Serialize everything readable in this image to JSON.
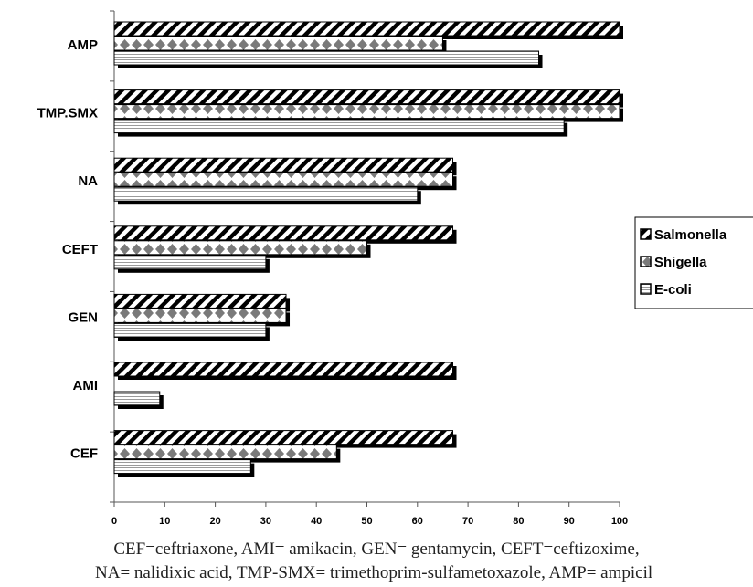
{
  "chart_data": {
    "type": "bar",
    "orientation": "horizontal",
    "categories": [
      "AMP",
      "TMP.SMX",
      "NA",
      "CEFT",
      "GEN",
      "AMI",
      "CEF"
    ],
    "series": [
      {
        "name": "Salmonella",
        "values": [
          100,
          100,
          67,
          67,
          34,
          67,
          67
        ],
        "color": "#000000",
        "pattern": "diagonal-stripes"
      },
      {
        "name": "Shigella",
        "values": [
          65,
          100,
          67,
          50,
          34,
          0,
          44
        ],
        "color": "#808080",
        "pattern": "diamonds"
      },
      {
        "name": "E-coli",
        "values": [
          84,
          89,
          60,
          30,
          30,
          9,
          27
        ],
        "color": "#ffffff",
        "pattern": "horizontal-lines"
      }
    ],
    "xlim": [
      0,
      100
    ],
    "xticks": [
      0,
      10,
      20,
      30,
      40,
      50,
      60,
      70,
      80,
      90,
      100
    ],
    "legend_position": "right",
    "shadow": true
  },
  "caption": {
    "line1": "CEF=ceftriaxone, AMI= amikacin, GEN= gentamycin, CEFT=ceftizoxime,",
    "line2": "NA= nalidixic acid, TMP-SMX= trimethoprim-sulfametoxazole, AMP= ampicil"
  }
}
